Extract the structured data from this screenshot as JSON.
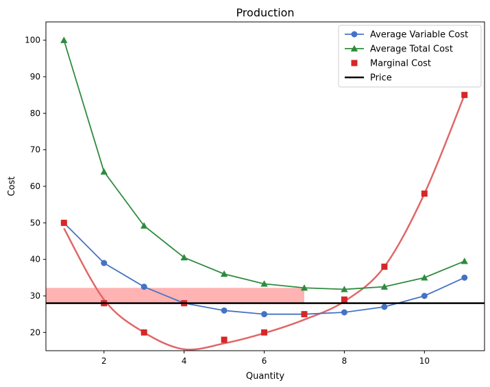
{
  "chart_data": {
    "type": "line",
    "title": "Production",
    "xlabel": "Quantity",
    "ylabel": "Cost",
    "xlim": [
      0.55,
      11.5
    ],
    "ylim": [
      15,
      105
    ],
    "xticks": [
      2,
      4,
      6,
      8,
      10
    ],
    "yticks": [
      20,
      30,
      40,
      50,
      60,
      70,
      80,
      90,
      100
    ],
    "legend_position": "top-right",
    "grid": false,
    "x": [
      1,
      2,
      3,
      4,
      5,
      6,
      7,
      8,
      9,
      10,
      11
    ],
    "series": [
      {
        "name": "Average Variable Cost",
        "color": "#4472c4",
        "marker": "circle",
        "style": "line-marker",
        "values": [
          50,
          39,
          32.5,
          28,
          26,
          25,
          25,
          25.5,
          27,
          30,
          35
        ]
      },
      {
        "name": "Average Total Cost",
        "color": "#2e8b3e",
        "marker": "triangle",
        "style": "line-marker",
        "values": [
          100,
          64,
          49.2,
          40.5,
          36,
          33.3,
          32.2,
          31.8,
          32.5,
          35,
          39.5
        ]
      },
      {
        "name": "Marginal Cost",
        "color": "#d62728",
        "marker": "square",
        "style": "marker-only",
        "values": [
          50,
          28,
          20,
          28,
          18,
          20,
          25,
          29,
          38,
          58,
          85
        ]
      },
      {
        "name": "Price",
        "color": "#000000",
        "style": "hline",
        "value": 28
      }
    ],
    "fitted_curve": {
      "color": "#e06666",
      "points": [
        [
          1,
          48.5
        ],
        [
          2,
          29
        ],
        [
          3,
          20
        ],
        [
          4,
          15.4
        ],
        [
          5,
          17
        ],
        [
          6,
          19.8
        ],
        [
          7,
          23.5
        ],
        [
          8,
          28.5
        ],
        [
          9,
          38
        ],
        [
          10,
          58
        ],
        [
          11,
          85
        ]
      ]
    },
    "shaded_region": {
      "color": "#ff9999",
      "x_from": 0.55,
      "x_to": 7,
      "y_from": 28,
      "y_to": 32.2
    }
  }
}
